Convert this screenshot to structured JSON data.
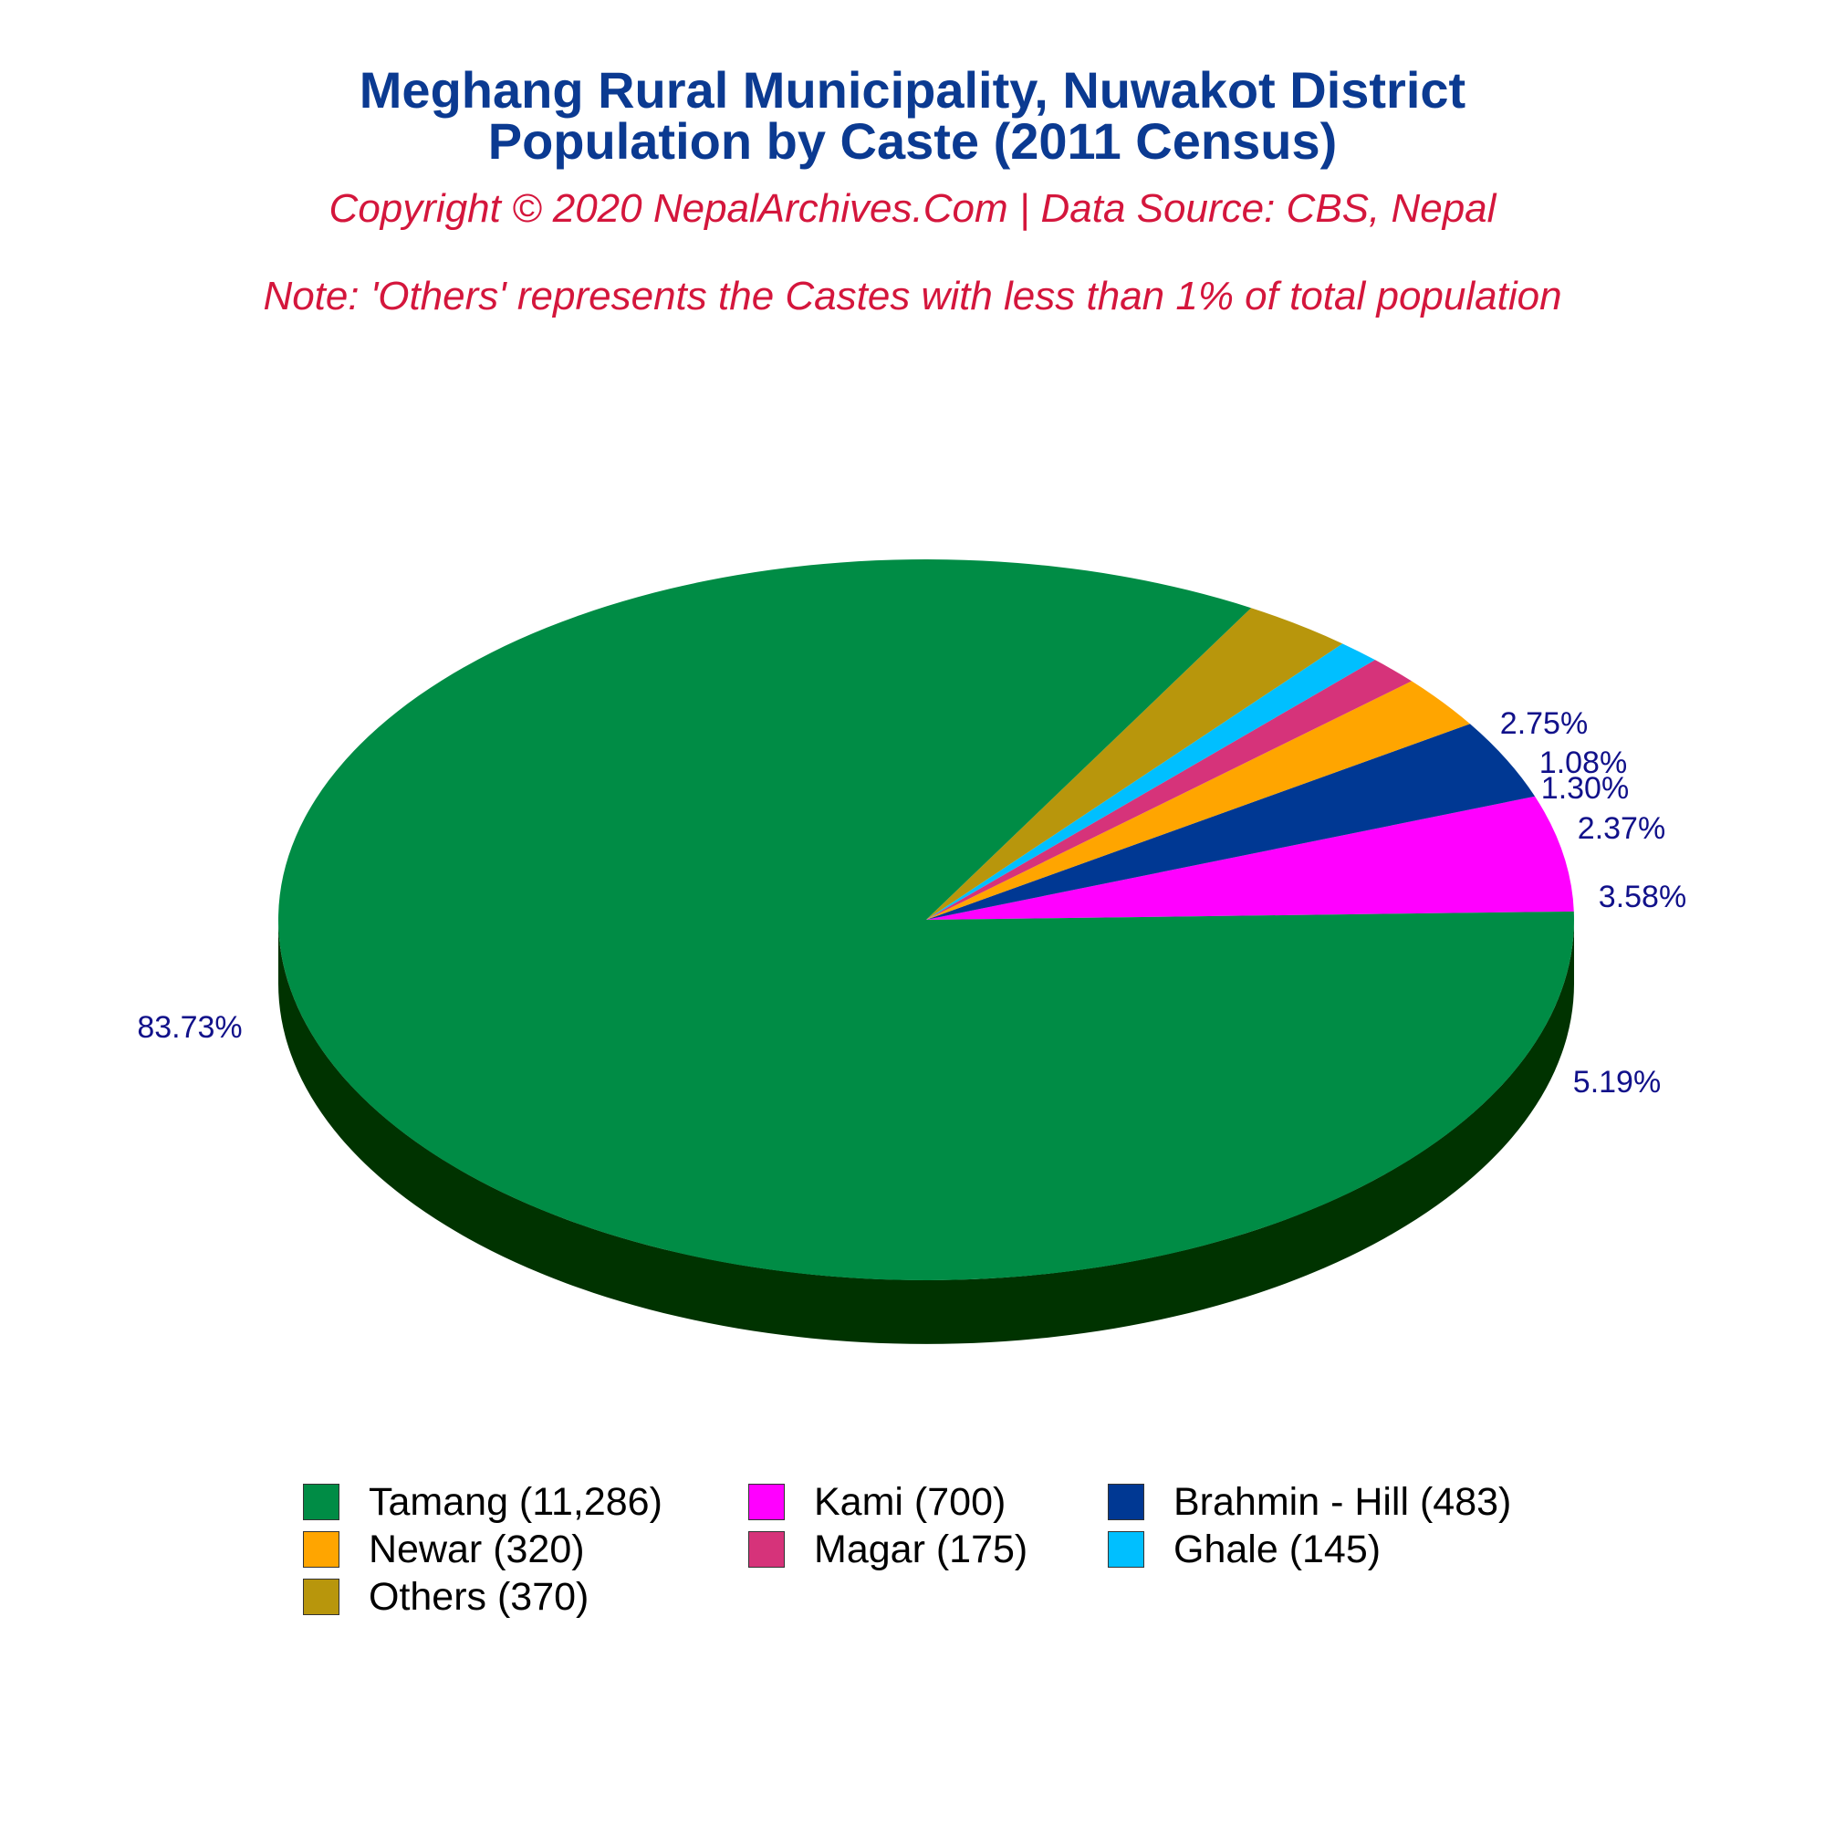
{
  "header": {
    "title_line1": "Meghang Rural Municipality, Nuwakot District",
    "title_line2": "Population by Caste (2011 Census)",
    "copyright": "Copyright © 2020 NepalArchives.Com | Data Source: CBS, Nepal",
    "note": "Note: 'Others' represents the Castes with less than 1% of total population"
  },
  "chart_data": {
    "type": "pie",
    "title": "Meghang Rural Municipality, Nuwakot District Population by Caste (2011 Census)",
    "style": "3d",
    "legend_position": "bottom",
    "slices": [
      {
        "name": "Tamang",
        "value": 11286,
        "percent_label": "83.73%",
        "legend_label": "Tamang (11,286)",
        "color": "#008c45",
        "side_color": "#003300"
      },
      {
        "name": "Kami",
        "value": 700,
        "percent_label": "5.19%",
        "legend_label": "Kami (700)",
        "color": "#ff00ff",
        "side_color": "#a100a8"
      },
      {
        "name": "Brahmin - Hill",
        "value": 483,
        "percent_label": "3.58%",
        "legend_label": "Brahmin - Hill (483)",
        "color": "#003893",
        "side_color": "#001f55"
      },
      {
        "name": "Newar",
        "value": 320,
        "percent_label": "2.37%",
        "legend_label": "Newar (320)",
        "color": "#ffa500",
        "side_color": "#a86a00"
      },
      {
        "name": "Magar",
        "value": 175,
        "percent_label": "1.30%",
        "legend_label": "Magar (175)",
        "color": "#d6337a",
        "side_color": "#8a1f4e"
      },
      {
        "name": "Ghale",
        "value": 145,
        "percent_label": "1.08%",
        "legend_label": "Ghale (145)",
        "color": "#00bfff",
        "side_color": "#007aa3"
      },
      {
        "name": "Others",
        "value": 370,
        "percent_label": "2.75%",
        "legend_label": "Others (370)",
        "color": "#b8960c",
        "side_color": "#6f5a07"
      }
    ]
  }
}
